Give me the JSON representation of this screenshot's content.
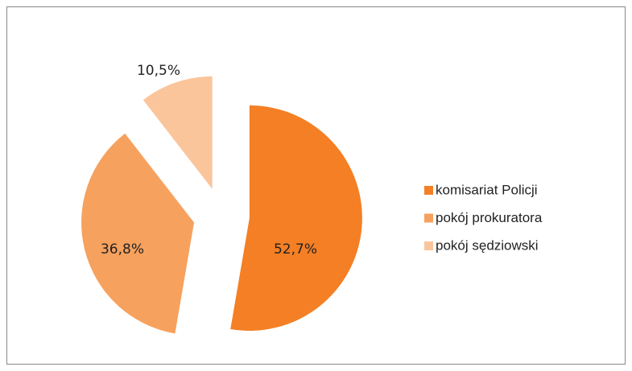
{
  "chart_data": {
    "type": "pie",
    "categories": [
      "komisariat Policji",
      "pokój prokuratora",
      "pokój sędziowski"
    ],
    "values": [
      52.7,
      36.8,
      10.5
    ],
    "value_labels": [
      "52,7%",
      "36,8%",
      "10,5%"
    ],
    "colors": [
      "#f47f24",
      "#f6a15e",
      "#fbc59c"
    ],
    "legend": "right"
  }
}
